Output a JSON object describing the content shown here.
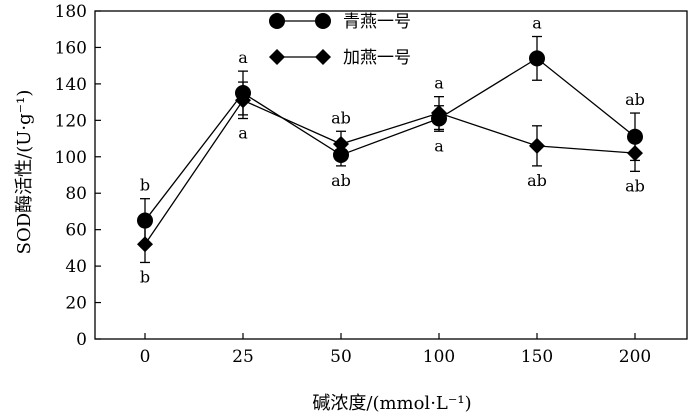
{
  "chart_data": {
    "type": "line",
    "x_axis_label": "碱浓度/(mmol·L⁻¹)",
    "y_axis_label": "SOD酶活性/(U·g⁻¹)",
    "categories": [
      "0",
      "25",
      "50",
      "100",
      "150",
      "200"
    ],
    "ylim": [
      0,
      180
    ],
    "y_ticks": [
      0,
      20,
      40,
      60,
      80,
      100,
      120,
      140,
      160,
      180
    ],
    "grid": false,
    "legend_position": "top-center",
    "series": [
      {
        "name": "青燕一号",
        "marker": "circle",
        "values": [
          65,
          135,
          101,
          121,
          154,
          111
        ],
        "errors": [
          12,
          12,
          6,
          7,
          12,
          13
        ],
        "significance": [
          "b",
          "a",
          "ab",
          "a",
          "a",
          "ab"
        ]
      },
      {
        "name": "加燕一号",
        "marker": "diamond",
        "values": [
          52,
          131,
          107,
          124,
          106,
          102
        ],
        "errors": [
          10,
          10,
          7,
          9,
          11,
          10
        ],
        "significance": [
          "b",
          "a",
          "ab",
          "a",
          "ab",
          "ab"
        ]
      }
    ]
  }
}
